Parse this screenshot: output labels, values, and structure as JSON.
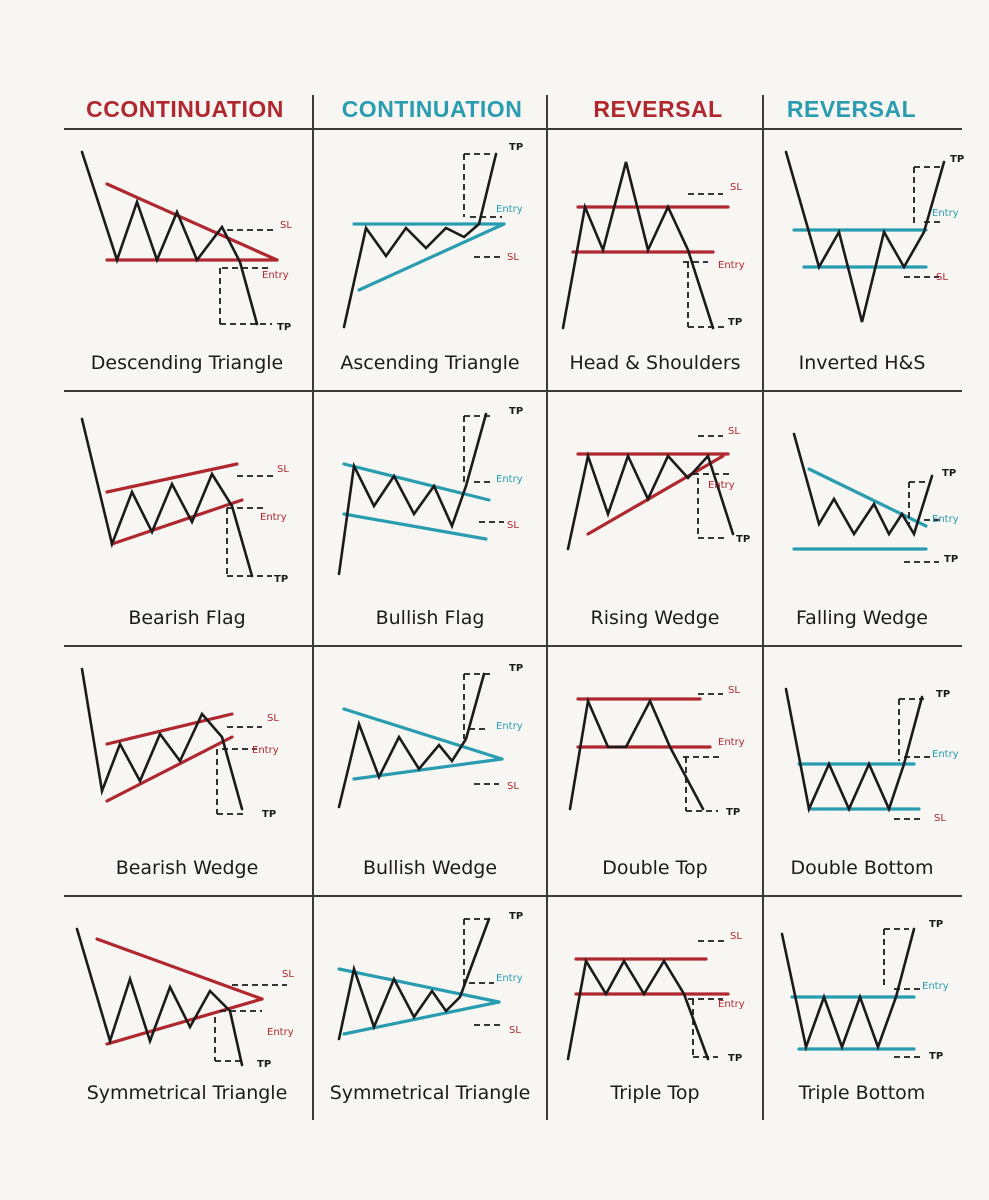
{
  "colors": {
    "red": "#b0282f",
    "teal": "#2a9cb0",
    "ink": "#1b1b1b",
    "grid": "#3a3a3a"
  },
  "headers": [
    {
      "text": "CCONTINUATION",
      "color": "#b0282f"
    },
    {
      "text": "CONTINUATION",
      "color": "#2a9cb0"
    },
    {
      "text": "REVERSAL",
      "color": "#b0282f"
    },
    {
      "text": "REVERSAL",
      "color": "#2a9cb0"
    }
  ],
  "patterns": [
    {
      "caption": "Descending Triangle",
      "color": "red",
      "type": "desc-tri",
      "labels": {
        "sl": "SL",
        "entry": "Entry",
        "tp": "TP"
      }
    },
    {
      "caption": "Ascending Triangle",
      "color": "teal",
      "type": "asc-tri",
      "labels": {
        "sl": "TP",
        "entry": "Entry",
        "tp": "SL"
      }
    },
    {
      "caption": "Head & Shoulders",
      "color": "red",
      "type": "hs",
      "labels": {
        "sl": "SL",
        "entry": "Entry",
        "tp": "TP"
      }
    },
    {
      "caption": "Inverted H&S",
      "color": "teal",
      "type": "ihs",
      "labels": {
        "sl": "TP",
        "entry": "Entry",
        "tp": "SL"
      }
    },
    {
      "caption": "Bearish Flag",
      "color": "red",
      "type": "bear-flag",
      "labels": {
        "sl": "SL",
        "entry": "Entry",
        "tp": "TP"
      }
    },
    {
      "caption": "Bullish Flag",
      "color": "teal",
      "type": "bull-flag",
      "labels": {
        "sl": "TP",
        "entry": "Entry",
        "tp": "SL"
      }
    },
    {
      "caption": "Rising Wedge",
      "color": "red",
      "type": "rising-wedge",
      "labels": {
        "sl": "SL",
        "entry": "Entry",
        "tp": "TP"
      }
    },
    {
      "caption": "Falling Wedge",
      "color": "teal",
      "type": "falling-wedge",
      "labels": {
        "sl": "TP",
        "entry": "Entry",
        "tp": "TP"
      }
    },
    {
      "caption": "Bearish Wedge",
      "color": "red",
      "type": "bear-wedge",
      "labels": {
        "sl": "SL",
        "entry": "Entry",
        "tp": "TP"
      }
    },
    {
      "caption": "Bullish Wedge",
      "color": "teal",
      "type": "bull-wedge",
      "labels": {
        "sl": "TP",
        "entry": "Entry",
        "tp": "SL"
      }
    },
    {
      "caption": "Double Top",
      "color": "red",
      "type": "double-top",
      "labels": {
        "sl": "SL",
        "entry": "Entry",
        "tp": "TP"
      }
    },
    {
      "caption": "Double Bottom",
      "color": "teal",
      "type": "double-bottom",
      "labels": {
        "sl": "TP",
        "entry": "Entry",
        "tp": "SL"
      }
    },
    {
      "caption": "Symmetrical Triangle",
      "color": "red",
      "type": "sym-bear",
      "labels": {
        "sl": "SL",
        "entry": "Entry",
        "tp": "TP"
      }
    },
    {
      "caption": "Symmetrical Triangle",
      "color": "teal",
      "type": "sym-bull",
      "labels": {
        "sl": "TP",
        "entry": "Entry",
        "tp": "SL"
      }
    },
    {
      "caption": "Triple Top",
      "color": "red",
      "type": "triple-top",
      "labels": {
        "sl": "SL",
        "entry": "Entry",
        "tp": "TP"
      }
    },
    {
      "caption": "Triple Bottom",
      "color": "teal",
      "type": "triple-bottom",
      "labels": {
        "sl": "TP",
        "entry": "Entry",
        "tp": "TP"
      }
    }
  ]
}
